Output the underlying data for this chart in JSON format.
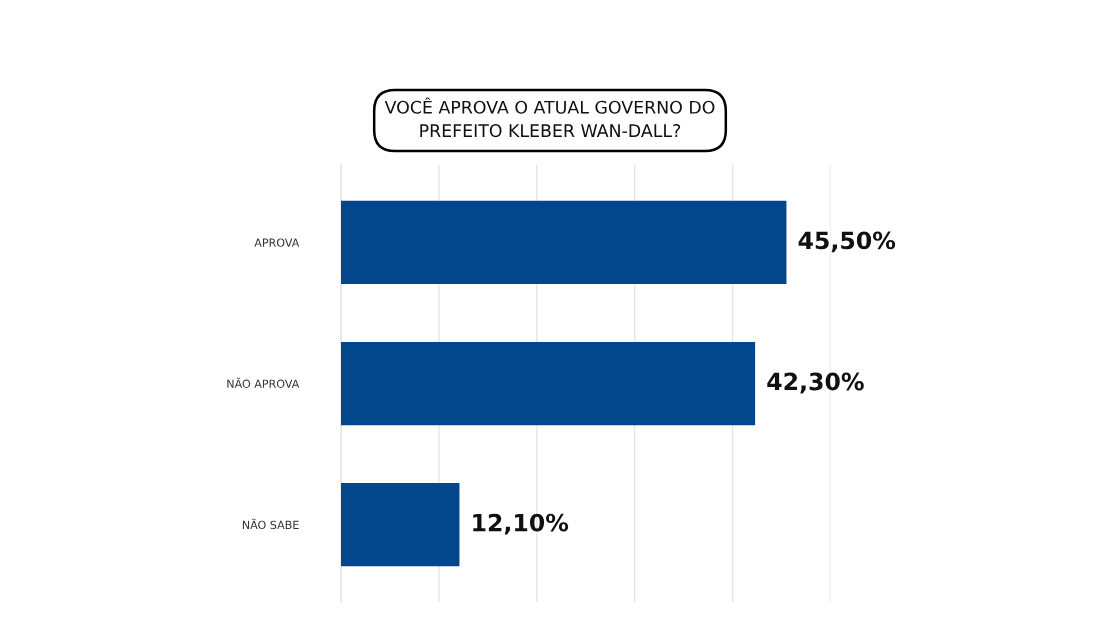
{
  "chart_data": {
    "type": "bar",
    "orientation": "horizontal",
    "title": "VOCÊ APROVA O ATUAL GOVERNO DO\nPREFEITO KLEBER WAN-DALL?",
    "categories": [
      "APROVA",
      "NÃO APROVA",
      "NÃO SABE"
    ],
    "values": [
      45.5,
      42.3,
      12.1
    ],
    "value_labels": [
      "45,50%",
      "42,30%",
      "12,10%"
    ],
    "color": "#02468c",
    "xlim": [
      0,
      50
    ],
    "xticks": [
      {
        "value": 0,
        "label": null
      },
      {
        "value": 10,
        "label": null
      },
      {
        "value": 20,
        "label": null
      },
      {
        "value": 30,
        "label": null
      },
      {
        "value": 40,
        "label": null
      },
      {
        "value": 50,
        "label": null
      }
    ],
    "tick_labels": "y",
    "grid": "x"
  }
}
